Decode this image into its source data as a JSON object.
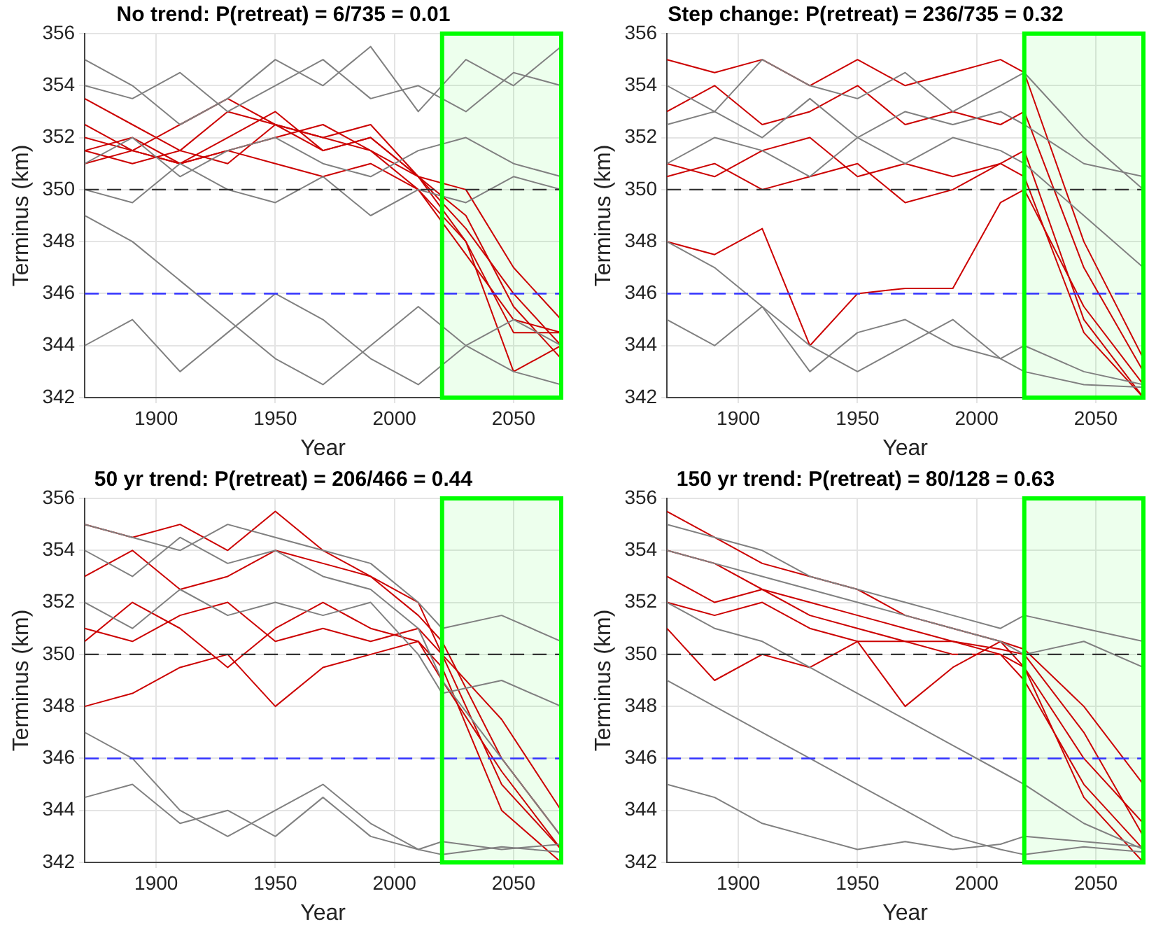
{
  "chart_data": [
    {
      "type": "line",
      "title": "No trend: P(retreat) = 6/735 = 0.01",
      "xlabel": "Year",
      "ylabel": "Terminus (km)",
      "xlim": [
        1870,
        2070
      ],
      "xticks": [
        1900,
        1950,
        2000,
        2050
      ],
      "ylim": [
        342,
        356
      ],
      "yticks": [
        342,
        344,
        346,
        348,
        350,
        352,
        354,
        356
      ],
      "grid": true,
      "legend": false,
      "marker": "none",
      "line_style": "solid",
      "x": [
        1870,
        1890,
        1910,
        1930,
        1950,
        1970,
        1990,
        2010,
        2030,
        2050,
        2070
      ],
      "ref_lines": [
        {
          "axis": "y",
          "value": 350,
          "color": "#333333",
          "line_style": "dashed"
        },
        {
          "axis": "y",
          "value": 346,
          "color": "#3333ff",
          "line_style": "dashed"
        }
      ],
      "bands": [
        {
          "axis": "x",
          "from": 2020,
          "to": 2070,
          "color": "#00ff00"
        }
      ],
      "series": [
        {
          "color": "#808080",
          "values": [
            354,
            353.5,
            354.5,
            353,
            354,
            355,
            353.5,
            354,
            353,
            354.5,
            354
          ]
        },
        {
          "color": "#808080",
          "values": [
            351,
            352,
            350.5,
            351.5,
            352,
            351,
            350.5,
            351.5,
            352,
            351,
            350.5
          ]
        },
        {
          "color": "#808080",
          "values": [
            349,
            348,
            346.5,
            345,
            343.5,
            342.5,
            344,
            345.5,
            344,
            343,
            342.5
          ]
        },
        {
          "color": "#808080",
          "values": [
            344,
            345,
            343,
            344.5,
            346,
            345,
            343.5,
            342.5,
            344,
            345,
            344
          ]
        },
        {
          "color": "#808080",
          "values": [
            355,
            354,
            352.5,
            353.5,
            355,
            354,
            355.5,
            353,
            355,
            354,
            355.5
          ]
        },
        {
          "color": "#808080",
          "values": [
            350,
            349.5,
            351,
            350,
            349.5,
            350.5,
            349,
            350,
            349.5,
            350.5,
            350
          ]
        },
        {
          "color": "#cc0000",
          "values": [
            353.5,
            352.5,
            351.5,
            353,
            352.5,
            352,
            352.5,
            350.5,
            348.5,
            346,
            344
          ]
        },
        {
          "color": "#cc0000",
          "values": [
            352,
            351.5,
            351,
            352,
            353,
            351.5,
            352,
            350.5,
            349,
            345.5,
            343.5
          ]
        },
        {
          "color": "#cc0000",
          "values": [
            351.5,
            352,
            351,
            351.5,
            352,
            352.5,
            351.5,
            350.5,
            348,
            344.5,
            344.5
          ]
        },
        {
          "color": "#cc0000",
          "values": [
            352.5,
            351.5,
            352.5,
            353.5,
            352.5,
            351.5,
            352,
            350.5,
            350,
            347,
            345
          ]
        },
        {
          "color": "#cc0000",
          "values": [
            351.5,
            351,
            351.5,
            351,
            352.5,
            352,
            351.5,
            350,
            348,
            343,
            344
          ]
        },
        {
          "color": "#cc0000",
          "values": [
            351,
            351.5,
            351,
            351.5,
            351,
            350.5,
            351,
            350,
            347.5,
            345,
            344.5
          ]
        }
      ]
    },
    {
      "type": "line",
      "title": "Step change: P(retreat) = 236/735 = 0.32",
      "xlabel": "Year",
      "ylabel": "Terminus (km)",
      "xlim": [
        1870,
        2070
      ],
      "xticks": [
        1900,
        1950,
        2000,
        2050
      ],
      "ylim": [
        342,
        356
      ],
      "yticks": [
        342,
        344,
        346,
        348,
        350,
        352,
        354,
        356
      ],
      "grid": true,
      "legend": false,
      "marker": "none",
      "line_style": "solid",
      "x": [
        1870,
        1890,
        1910,
        1930,
        1950,
        1970,
        1990,
        2010,
        2020,
        2045,
        2070
      ],
      "ref_lines": [
        {
          "axis": "y",
          "value": 350,
          "color": "#333333",
          "line_style": "dashed"
        },
        {
          "axis": "y",
          "value": 346,
          "color": "#3333ff",
          "line_style": "dashed"
        }
      ],
      "bands": [
        {
          "axis": "x",
          "from": 2020,
          "to": 2070,
          "color": "#00ff00"
        }
      ],
      "series": [
        {
          "color": "#808080",
          "values": [
            354,
            353,
            355,
            354,
            353.5,
            354.5,
            353,
            354,
            354.5,
            352,
            350
          ]
        },
        {
          "color": "#808080",
          "values": [
            351,
            352,
            351.5,
            350.5,
            352,
            351,
            352,
            351.5,
            351,
            349,
            347
          ]
        },
        {
          "color": "#808080",
          "values": [
            348,
            347,
            345.5,
            344,
            343,
            344,
            345,
            343.5,
            343,
            342.5,
            342.4
          ]
        },
        {
          "color": "#808080",
          "values": [
            352.5,
            353,
            352,
            353.5,
            352,
            353,
            352.5,
            353,
            352.5,
            351,
            350.5
          ]
        },
        {
          "color": "#808080",
          "values": [
            345,
            344,
            345.5,
            343,
            344.5,
            345,
            344,
            343.5,
            344,
            343,
            342.5
          ]
        },
        {
          "color": "#cc0000",
          "values": [
            353,
            354,
            352.5,
            353,
            354,
            352.5,
            353,
            352.5,
            353,
            347,
            343
          ]
        },
        {
          "color": "#cc0000",
          "values": [
            351,
            350.5,
            351.5,
            352,
            350.5,
            351,
            350.5,
            351,
            351.5,
            345,
            342
          ]
        },
        {
          "color": "#cc0000",
          "values": [
            348,
            347.5,
            348.5,
            344,
            346,
            346.2,
            346.2,
            349.5,
            350,
            345.5,
            342.5
          ]
        },
        {
          "color": "#cc0000",
          "values": [
            355,
            354.5,
            355,
            354,
            355,
            354,
            354.5,
            355,
            354.5,
            348,
            343.5
          ]
        },
        {
          "color": "#cc0000",
          "values": [
            350.5,
            351,
            350,
            350.5,
            351,
            349.5,
            350,
            351,
            350.5,
            344.5,
            342
          ]
        }
      ]
    },
    {
      "type": "line",
      "title": "50 yr trend: P(retreat) = 206/466 = 0.44",
      "xlabel": "Year",
      "ylabel": "Terminus (km)",
      "xlim": [
        1870,
        2070
      ],
      "xticks": [
        1900,
        1950,
        2000,
        2050
      ],
      "ylim": [
        342,
        356
      ],
      "yticks": [
        342,
        344,
        346,
        348,
        350,
        352,
        354,
        356
      ],
      "grid": true,
      "legend": false,
      "marker": "none",
      "line_style": "solid",
      "x": [
        1870,
        1890,
        1910,
        1930,
        1950,
        1970,
        1990,
        2010,
        2020,
        2045,
        2070
      ],
      "ref_lines": [
        {
          "axis": "y",
          "value": 350,
          "color": "#333333",
          "line_style": "dashed"
        },
        {
          "axis": "y",
          "value": 346,
          "color": "#3333ff",
          "line_style": "dashed"
        }
      ],
      "bands": [
        {
          "axis": "x",
          "from": 2020,
          "to": 2070,
          "color": "#00ff00"
        }
      ],
      "series": [
        {
          "color": "#808080",
          "values": [
            354,
            353,
            354.5,
            353.5,
            354,
            353,
            352.5,
            351,
            349,
            346,
            343
          ]
        },
        {
          "color": "#808080",
          "values": [
            352,
            351,
            352.5,
            351.5,
            352,
            351.5,
            352,
            350,
            348.5,
            349,
            348
          ]
        },
        {
          "color": "#808080",
          "values": [
            347,
            346,
            344,
            343,
            344,
            345,
            343.5,
            342.5,
            342.3,
            342.6,
            342.4
          ]
        },
        {
          "color": "#808080",
          "values": [
            355,
            354.5,
            354,
            355,
            354.5,
            354,
            353.5,
            352,
            351,
            351.5,
            350.5
          ]
        },
        {
          "color": "#808080",
          "values": [
            344.5,
            345,
            343.5,
            344,
            343,
            344.5,
            343,
            342.5,
            342.8,
            342.5,
            342.7
          ]
        },
        {
          "color": "#cc0000",
          "values": [
            353,
            354,
            352.5,
            353,
            354,
            353.5,
            353,
            351.5,
            350.5,
            346,
            343
          ]
        },
        {
          "color": "#cc0000",
          "values": [
            351,
            350.5,
            351.5,
            352,
            350.5,
            351,
            350.5,
            351,
            350,
            345,
            342.5
          ]
        },
        {
          "color": "#cc0000",
          "values": [
            348,
            348.5,
            349.5,
            350,
            348,
            349.5,
            350,
            350.5,
            349.5,
            344,
            342
          ]
        },
        {
          "color": "#cc0000",
          "values": [
            355,
            354.5,
            355,
            354,
            355.5,
            354,
            353,
            352,
            350,
            347.5,
            344
          ]
        },
        {
          "color": "#cc0000",
          "values": [
            350.5,
            352,
            351,
            349.5,
            351,
            352,
            351,
            350.5,
            349,
            345.5,
            342.5
          ]
        }
      ]
    },
    {
      "type": "line",
      "title": "150 yr trend: P(retreat) = 80/128 = 0.63",
      "xlabel": "Year",
      "ylabel": "Terminus (km)",
      "xlim": [
        1870,
        2070
      ],
      "xticks": [
        1900,
        1950,
        2000,
        2050
      ],
      "ylim": [
        342,
        356
      ],
      "yticks": [
        342,
        344,
        346,
        348,
        350,
        352,
        354,
        356
      ],
      "grid": true,
      "legend": false,
      "marker": "none",
      "line_style": "solid",
      "x": [
        1870,
        1890,
        1910,
        1930,
        1950,
        1970,
        1990,
        2010,
        2020,
        2045,
        2070
      ],
      "ref_lines": [
        {
          "axis": "y",
          "value": 350,
          "color": "#333333",
          "line_style": "dashed"
        },
        {
          "axis": "y",
          "value": 346,
          "color": "#3333ff",
          "line_style": "dashed"
        }
      ],
      "bands": [
        {
          "axis": "x",
          "from": 2020,
          "to": 2070,
          "color": "#00ff00"
        }
      ],
      "series": [
        {
          "color": "#808080",
          "values": [
            355,
            354.5,
            354,
            353,
            352.5,
            352,
            351.5,
            351,
            351.5,
            351,
            350.5
          ]
        },
        {
          "color": "#808080",
          "values": [
            352,
            351,
            350.5,
            349.5,
            348.5,
            347.5,
            346.5,
            345.5,
            345,
            343.5,
            342.5
          ]
        },
        {
          "color": "#808080",
          "values": [
            349,
            348,
            347,
            346,
            345,
            344,
            343,
            342.5,
            342.3,
            342.6,
            342.4
          ]
        },
        {
          "color": "#808080",
          "values": [
            354,
            353.5,
            353,
            352.5,
            352,
            351.5,
            351,
            350.5,
            350,
            350.5,
            349.5
          ]
        },
        {
          "color": "#808080",
          "values": [
            345,
            344.5,
            343.5,
            343,
            342.5,
            342.8,
            342.5,
            342.7,
            343,
            342.8,
            342.6
          ]
        },
        {
          "color": "#cc0000",
          "values": [
            354,
            353.5,
            352.5,
            352,
            351.5,
            351,
            350.5,
            350.2,
            350,
            347,
            343
          ]
        },
        {
          "color": "#cc0000",
          "values": [
            352,
            351.5,
            352,
            351,
            350.5,
            350.5,
            350,
            350,
            349.5,
            344.5,
            342
          ]
        },
        {
          "color": "#cc0000",
          "values": [
            351,
            349,
            350,
            349.5,
            350.5,
            348,
            349.5,
            350.5,
            349.5,
            346,
            343.5
          ]
        },
        {
          "color": "#cc0000",
          "values": [
            355.5,
            354.5,
            353.5,
            353,
            352.5,
            351.5,
            351,
            350.5,
            350.2,
            348,
            345
          ]
        },
        {
          "color": "#cc0000",
          "values": [
            353,
            352,
            352.5,
            351.5,
            351,
            350.5,
            350.5,
            350,
            349,
            345,
            342.5
          ]
        }
      ]
    }
  ]
}
